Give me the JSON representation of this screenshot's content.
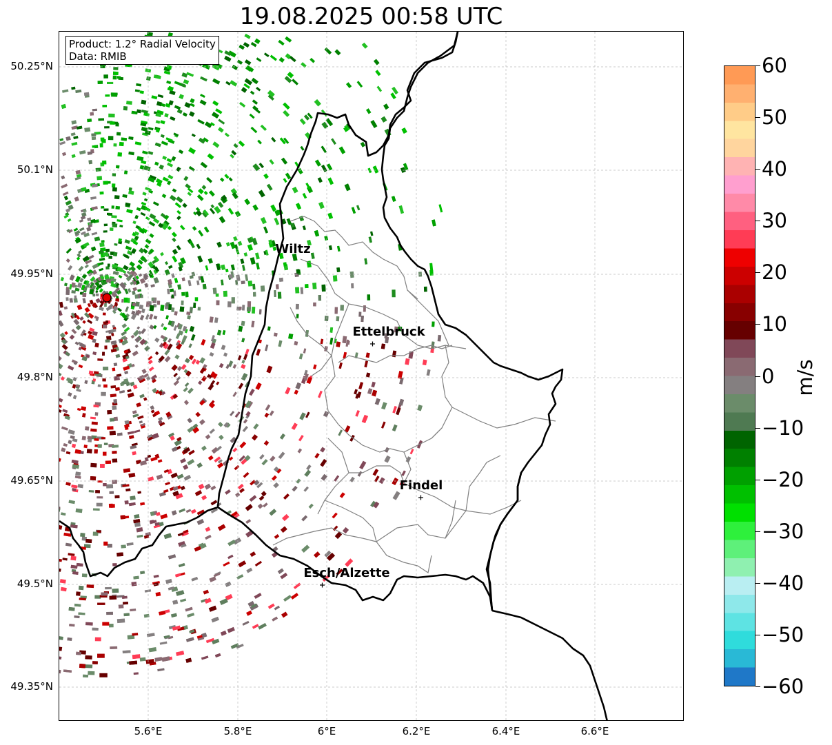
{
  "title": "19.08.2025 00:58 UTC",
  "info": {
    "product": "Product: 1.2° Radial Velocity",
    "data_source": "Data: RMIB"
  },
  "y_ticks": [
    "50.25°N",
    "50.1°N",
    "49.95°N",
    "49.8°N",
    "49.65°N",
    "49.5°N",
    "49.35°N"
  ],
  "x_ticks": [
    "5.6°E",
    "5.8°E",
    "6°E",
    "6.2°E",
    "6.4°E",
    "6.6°E"
  ],
  "cities": [
    "Wiltz",
    "Ettelbruck",
    "Findel",
    "Esch/Alzette"
  ],
  "radar_site": "radar-location",
  "colorbar": {
    "ticks": [
      "60",
      "50",
      "40",
      "30",
      "20",
      "10",
      "0",
      "−10",
      "−20",
      "−30",
      "−40",
      "−50",
      "−60"
    ],
    "unit": "m/s",
    "range": [
      -60,
      60
    ],
    "colors": [
      "#1f78c8",
      "#29b9d6",
      "#2fdcdc",
      "#5ee3e3",
      "#8ee8ea",
      "#b9eef2",
      "#8ff0b0",
      "#5ef07a",
      "#2ef03c",
      "#00e000",
      "#00c000",
      "#00a000",
      "#008000",
      "#006400",
      "#4f7a52",
      "#6b8c6a",
      "#847f80",
      "#8a6a72",
      "#804858",
      "#660000",
      "#880000",
      "#aa0000",
      "#cc0000",
      "#ee0000",
      "#ff3c55",
      "#ff6080",
      "#ff8aa8",
      "#ff9fcf",
      "#ffb3b3",
      "#ffd59e",
      "#ffe5a0",
      "#ffcc88",
      "#ffb070",
      "#ff9a55"
    ]
  },
  "legend_entries": {
    "borders": "black",
    "cantons": "gray"
  }
}
